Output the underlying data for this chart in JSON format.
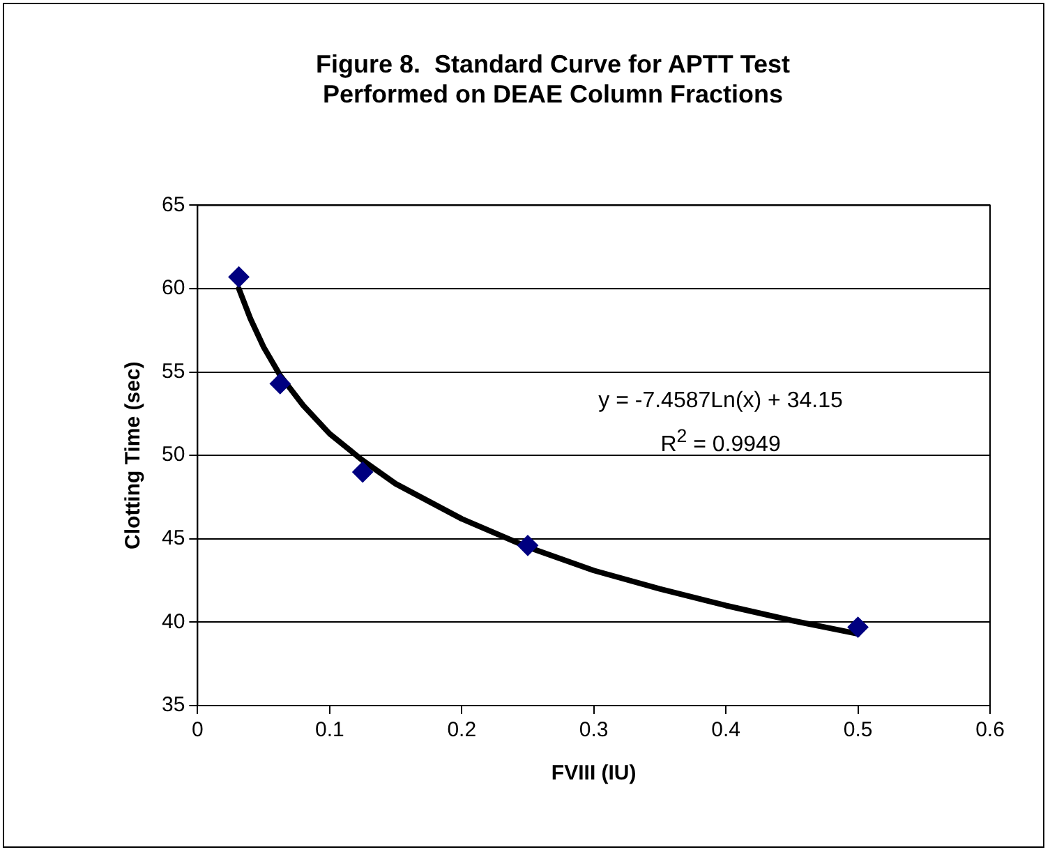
{
  "chart_data": {
    "type": "scatter",
    "title": "Figure 8.  Standard Curve for APTT Test\nPerformed on DEAE Column Fractions",
    "xlabel": "FVIII (IU)",
    "ylabel": "Clotting Time (sec)",
    "x": [
      0.03125,
      0.0625,
      0.125,
      0.25,
      0.5
    ],
    "series": [
      {
        "color": "#000080",
        "values": [
          60.7,
          54.3,
          49.0,
          44.6,
          39.7
        ],
        "marker": "diamond"
      },
      {
        "type": "line",
        "color": "#000000",
        "x": [
          0.03125,
          0.04,
          0.05,
          0.0625,
          0.08,
          0.1,
          0.125,
          0.15,
          0.2,
          0.25,
          0.3,
          0.35,
          0.4,
          0.45,
          0.5
        ],
        "values": [
          60.0,
          58.2,
          56.5,
          54.8,
          53.0,
          51.3,
          49.7,
          48.3,
          46.2,
          44.5,
          43.1,
          42.0,
          41.0,
          40.1,
          39.3
        ],
        "marker": "none",
        "line_style": "solid"
      }
    ],
    "xlim": [
      0,
      0.6
    ],
    "xticks": [
      0,
      0.1,
      0.2,
      0.3,
      0.4,
      0.5,
      0.6
    ],
    "ylim": [
      35,
      65
    ],
    "yticks": [
      35,
      40,
      45,
      50,
      55,
      60,
      65
    ],
    "grid": "y",
    "legend": false,
    "annotations": [
      "y = -7.4587Ln(x) + 34.15",
      "R$^{2}$ = 0.9949"
    ]
  }
}
